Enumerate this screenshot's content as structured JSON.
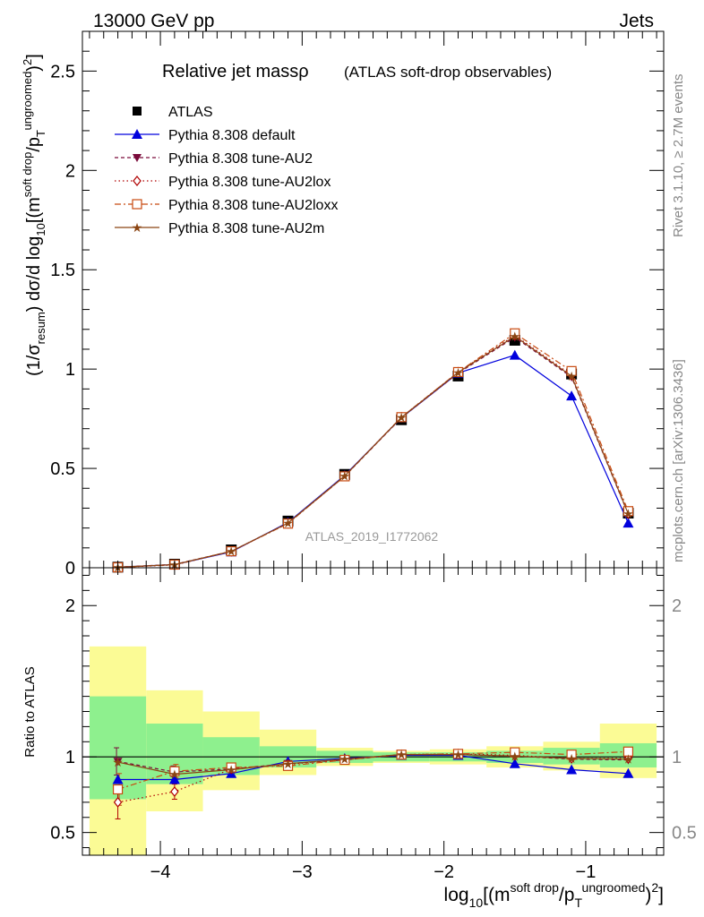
{
  "header": {
    "left": "13000 GeV pp",
    "right": "Jets"
  },
  "side": {
    "rivet": "Rivet 3.1.10, ≥ 2.7M events",
    "mcplots": "mcplots.cern.ch [arXiv:1306.3436]"
  },
  "main_title": "Relative jet massρ",
  "main_subtitle": "(ATLAS soft-drop observables)",
  "watermark": "ATLAS_2019_I1772062",
  "colors": {
    "data": "#000000",
    "default": "#0000dd",
    "au2": "#7a0a3a",
    "au2lox": "#b00000",
    "au2loxx": "#c84a10",
    "au2m": "#8b4513",
    "band_inner": "#8ef08e",
    "band_outer": "#fbfb95"
  },
  "chart_data": [
    {
      "type": "line",
      "panel": "main",
      "title": "Relative jet massρ (ATLAS soft-drop observables)",
      "ylabel_parts": [
        "(1/σ",
        "resum",
        ") dσ/d log",
        "10",
        "[(m",
        "soft drop",
        "/p",
        "T",
        "ungroomed",
        ")",
        "2",
        "]"
      ],
      "ylim": [
        0,
        2.7
      ],
      "xlim": [
        -4.55,
        -0.45
      ],
      "yticks": [
        0,
        0.5,
        1,
        1.5,
        2,
        2.5
      ],
      "ytick_labels": [
        "0",
        "0.5",
        "1",
        "1.5",
        "2",
        "2.5"
      ],
      "legend": [
        "ATLAS",
        "Pythia 8.308 default",
        "Pythia 8.308 tune-AU2",
        "Pythia 8.308 tune-AU2lox",
        "Pythia 8.308 tune-AU2loxx",
        "Pythia 8.308 tune-AU2m"
      ],
      "legend_position": "top-left",
      "x": [
        -4.3,
        -3.9,
        -3.5,
        -3.1,
        -2.7,
        -2.3,
        -1.9,
        -1.5,
        -1.1,
        -0.7
      ],
      "series": [
        {
          "name": "ATLAS",
          "values": [
            0.003,
            0.018,
            0.09,
            0.235,
            0.47,
            0.745,
            0.965,
            1.145,
            0.975,
            0.275
          ]
        },
        {
          "name": "Pythia 8.308 default",
          "values": [
            0.003,
            0.016,
            0.08,
            0.228,
            0.465,
            0.755,
            0.98,
            1.07,
            0.865,
            0.225
          ]
        },
        {
          "name": "Pythia 8.308 tune-AU2",
          "values": [
            0.003,
            0.017,
            0.083,
            0.225,
            0.46,
            0.755,
            0.98,
            1.16,
            0.96,
            0.27
          ]
        },
        {
          "name": "Pythia 8.308 tune-AU2lox",
          "values": [
            0.002,
            0.014,
            0.082,
            0.223,
            0.462,
            0.758,
            0.985,
            1.17,
            0.97,
            0.272
          ]
        },
        {
          "name": "Pythia 8.308 tune-AU2loxx",
          "values": [
            0.002,
            0.016,
            0.083,
            0.222,
            0.46,
            0.758,
            0.985,
            1.18,
            0.99,
            0.285
          ]
        },
        {
          "name": "Pythia 8.308 tune-AU2m",
          "values": [
            0.003,
            0.016,
            0.083,
            0.225,
            0.462,
            0.757,
            0.983,
            1.165,
            0.965,
            0.272
          ]
        }
      ]
    },
    {
      "type": "line",
      "panel": "ratio",
      "ylabel": "Ratio to ATLAS",
      "ylim": [
        0.35,
        2.25
      ],
      "yticks": [
        0.5,
        1,
        2
      ],
      "ytick_labels": [
        "0.5",
        "1",
        "2"
      ],
      "xlim": [
        -4.55,
        -0.45
      ],
      "xticks": [
        -4,
        -3,
        -2,
        -1
      ],
      "xtick_labels": [
        "−4",
        "−3",
        "−2",
        "−1"
      ],
      "xlabel_parts": [
        "log",
        "10",
        "[(m",
        "soft drop",
        "/p",
        "T",
        "ungroomed",
        ")",
        "2",
        "]"
      ],
      "x": [
        -4.3,
        -3.9,
        -3.5,
        -3.1,
        -2.7,
        -2.3,
        -1.9,
        -1.5,
        -1.1,
        -0.7
      ],
      "bins": [
        [
          -4.5,
          -4.1
        ],
        [
          -4.1,
          -3.7
        ],
        [
          -3.7,
          -3.3
        ],
        [
          -3.3,
          -2.9
        ],
        [
          -2.9,
          -2.5
        ],
        [
          -2.5,
          -2.1
        ],
        [
          -2.1,
          -1.7
        ],
        [
          -1.7,
          -1.3
        ],
        [
          -1.3,
          -0.9
        ],
        [
          -0.9,
          -0.5
        ]
      ],
      "band_inner": [
        [
          0.72,
          1.4
        ],
        [
          0.82,
          1.22
        ],
        [
          0.88,
          1.13
        ],
        [
          0.93,
          1.07
        ],
        [
          0.96,
          1.04
        ],
        [
          0.97,
          1.03
        ],
        [
          0.97,
          1.03
        ],
        [
          0.96,
          1.04
        ],
        [
          0.95,
          1.06
        ],
        [
          0.93,
          1.09
        ]
      ],
      "band_outer": [
        [
          0.3,
          1.73
        ],
        [
          0.64,
          1.44
        ],
        [
          0.78,
          1.3
        ],
        [
          0.88,
          1.18
        ],
        [
          0.94,
          1.06
        ],
        [
          0.96,
          1.04
        ],
        [
          0.95,
          1.05
        ],
        [
          0.93,
          1.07
        ],
        [
          0.91,
          1.1
        ],
        [
          0.86,
          1.22
        ]
      ],
      "series": [
        {
          "name": "Pythia 8.308 default",
          "values": [
            0.85,
            0.85,
            0.89,
            0.97,
            0.99,
            1.01,
            1.01,
            0.955,
            0.915,
            0.89
          ]
        },
        {
          "name": "Pythia 8.308 tune-AU2",
          "values": [
            0.97,
            0.9,
            0.92,
            0.955,
            0.98,
            1.015,
            1.015,
            1.005,
            0.985,
            0.98
          ]
        },
        {
          "name": "Pythia 8.308 tune-AU2lox",
          "values": [
            0.7,
            0.77,
            0.92,
            0.95,
            0.985,
            1.015,
            1.02,
            1.01,
            0.99,
            0.99
          ]
        },
        {
          "name": "Pythia 8.308 tune-AU2loxx",
          "values": [
            0.785,
            0.905,
            0.93,
            0.94,
            0.98,
            1.015,
            1.02,
            1.03,
            1.015,
            1.035
          ]
        },
        {
          "name": "Pythia 8.308 tune-AU2m",
          "values": [
            0.965,
            0.885,
            0.915,
            0.955,
            0.985,
            1.015,
            1.015,
            1.005,
            0.99,
            0.985
          ]
        }
      ],
      "error_bars": {
        "x_index": [
          0,
          1
        ],
        "au2": [
          [
            0.88,
            1.06
          ],
          [
            0.87,
            0.94
          ]
        ],
        "au2lox": [
          [
            0.59,
            0.8
          ],
          [
            0.72,
            0.82
          ]
        ],
        "au2loxx": [
          [
            0.68,
            0.89
          ],
          [
            0.86,
            0.95
          ]
        ]
      }
    }
  ]
}
